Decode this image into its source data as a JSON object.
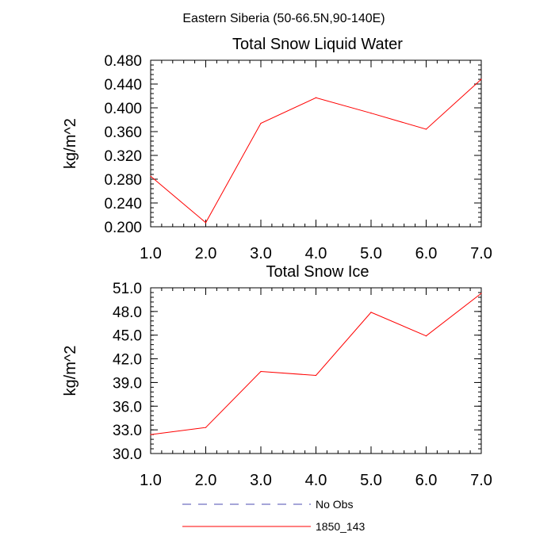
{
  "figure_title": "Eastern Siberia (50-66.5N,90-140E)",
  "legend": [
    {
      "label": "No Obs",
      "color": "#4b4bb0",
      "style": "dashed"
    },
    {
      "label": "1850_143",
      "color": "#ff0000",
      "style": "solid"
    }
  ],
  "chart_data": [
    {
      "type": "line",
      "title": "Total Snow Liquid Water",
      "xlabel": "",
      "ylabel": "kg/m^2",
      "xlim": [
        1.0,
        7.0
      ],
      "ylim": [
        0.2,
        0.48
      ],
      "xticks": [
        "1.0",
        "2.0",
        "3.0",
        "4.0",
        "5.0",
        "6.0",
        "7.0"
      ],
      "yticks": [
        "0.200",
        "0.240",
        "0.280",
        "0.320",
        "0.360",
        "0.400",
        "0.440",
        "0.480"
      ],
      "grid": false,
      "series": [
        {
          "name": "1850_143",
          "color": "#ff0000",
          "x": [
            1,
            2,
            3,
            4,
            5,
            6,
            7
          ],
          "values": [
            0.285,
            0.207,
            0.374,
            0.417,
            0.391,
            0.364,
            0.448
          ]
        }
      ]
    },
    {
      "type": "line",
      "title": "Total Snow Ice",
      "xlabel": "",
      "ylabel": "kg/m^2",
      "xlim": [
        1.0,
        7.0
      ],
      "ylim": [
        30.0,
        51.0
      ],
      "xticks": [
        "1.0",
        "2.0",
        "3.0",
        "4.0",
        "5.0",
        "6.0",
        "7.0"
      ],
      "yticks": [
        "30.0",
        "33.0",
        "36.0",
        "39.0",
        "42.0",
        "45.0",
        "48.0",
        "51.0"
      ],
      "grid": false,
      "series": [
        {
          "name": "1850_143",
          "color": "#ff0000",
          "x": [
            1,
            2,
            3,
            4,
            5,
            6,
            7
          ],
          "values": [
            32.4,
            33.3,
            40.4,
            39.9,
            47.9,
            44.9,
            50.3
          ]
        }
      ]
    }
  ]
}
